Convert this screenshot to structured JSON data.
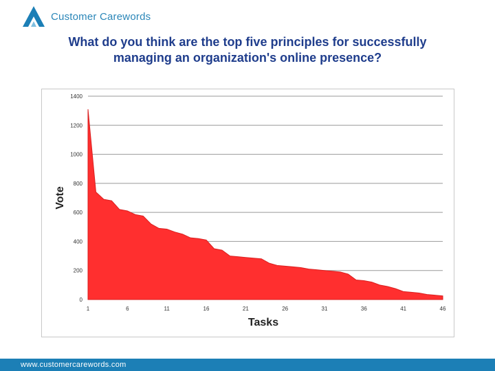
{
  "brand": {
    "name": "Customer Carewords"
  },
  "slide": {
    "title_line1": "What do you think are the top five principles for successfully",
    "title_line2": "managing an organization's online presence?"
  },
  "footer": {
    "url": "www.customercarewords.com"
  },
  "colors": {
    "fill": "#ff2f2f",
    "stroke": "#d91f1f",
    "grid": "#999999",
    "title": "#1f3d8c",
    "footer": "#1c7fb6"
  },
  "chart_data": {
    "type": "area",
    "title": "",
    "xlabel": "Tasks",
    "ylabel": "Vote",
    "xlim": [
      1,
      46
    ],
    "ylim": [
      0,
      1400
    ],
    "y_ticks": [
      0,
      200,
      400,
      600,
      800,
      1000,
      1200,
      1400
    ],
    "x_ticks": [
      1,
      6,
      11,
      16,
      21,
      26,
      31,
      36,
      41,
      46
    ],
    "grid": true,
    "legend": "none",
    "series": [
      {
        "x": [
          1,
          2,
          3,
          4,
          5,
          6,
          7,
          8,
          9,
          10,
          11,
          12,
          13,
          14,
          15,
          16,
          17,
          18,
          19,
          20,
          21,
          22,
          23,
          24,
          25,
          26,
          27,
          28,
          29,
          30,
          31,
          32,
          33,
          34,
          35,
          36,
          37,
          38,
          39,
          40,
          41,
          42,
          43,
          44,
          45,
          46
        ],
        "values": [
          1310,
          740,
          690,
          680,
          620,
          610,
          585,
          575,
          520,
          490,
          485,
          465,
          450,
          425,
          420,
          410,
          350,
          340,
          300,
          295,
          290,
          285,
          280,
          250,
          235,
          230,
          225,
          220,
          210,
          205,
          200,
          195,
          190,
          175,
          135,
          130,
          120,
          100,
          90,
          75,
          55,
          50,
          45,
          35,
          30,
          25
        ]
      }
    ]
  }
}
